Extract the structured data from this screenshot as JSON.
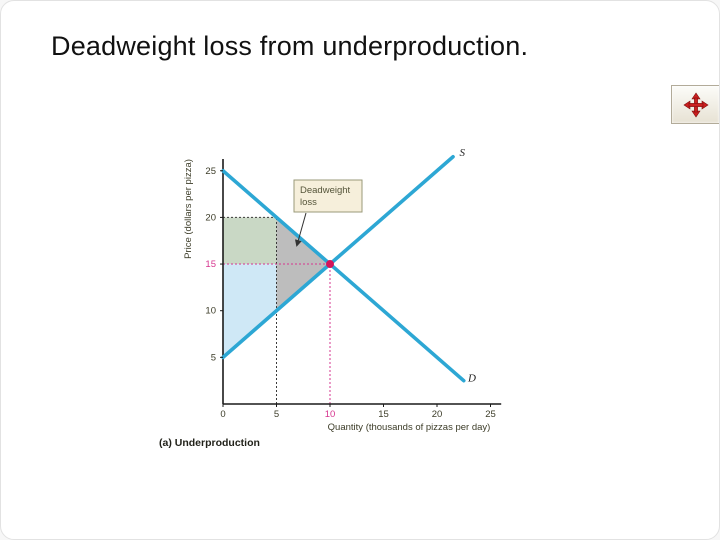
{
  "slide": {
    "title": "Deadweight loss from underproduction.",
    "caption": "(a) Underproduction"
  },
  "icons": {
    "nav_button": "move-arrows-icon",
    "nav_arrow_color": "#cc1f1f"
  },
  "chart_data": {
    "type": "line",
    "title": "Deadweight loss from underproduction",
    "xlabel": "Quantity (thousands of pizzas per day)",
    "ylabel": "Price (dollars per pizza)",
    "xlim": [
      0,
      26
    ],
    "ylim": [
      0,
      27
    ],
    "x_ticks": [
      0,
      5,
      10,
      15,
      20,
      25
    ],
    "y_ticks": [
      5,
      10,
      15,
      20,
      25
    ],
    "highlight_ticks": {
      "x": 10,
      "y": 15
    },
    "highlight_color": "#d6358f",
    "text_color": "#3c3c28",
    "grid": false,
    "legend": "inline-curve-labels",
    "series": [
      {
        "name": "S",
        "points": [
          [
            0,
            5
          ],
          [
            21.5,
            26.5
          ]
        ],
        "color": "#2da7d4",
        "label_pos": [
          22.1,
          26.6
        ]
      },
      {
        "name": "D",
        "points": [
          [
            0,
            25
          ],
          [
            22.5,
            2.5
          ]
        ],
        "color": "#2da7d4",
        "label_pos": [
          22.9,
          2.4
        ]
      }
    ],
    "equilibrium": {
      "x": 10,
      "y": 15,
      "color": "#d4145a"
    },
    "regions": [
      {
        "name": "consumer-surplus",
        "fill": "#c9d8c5",
        "points": [
          [
            0,
            15
          ],
          [
            0,
            20
          ],
          [
            5,
            20
          ],
          [
            5,
            15
          ]
        ]
      },
      {
        "name": "producer-surplus",
        "fill": "#cfe8f6",
        "points": [
          [
            0,
            15
          ],
          [
            5,
            15
          ],
          [
            5,
            10
          ],
          [
            0,
            5
          ]
        ]
      },
      {
        "name": "deadweight-loss",
        "fill": "#bdbdbd",
        "points": [
          [
            5,
            20
          ],
          [
            10,
            15
          ],
          [
            5,
            10
          ]
        ]
      }
    ],
    "guides": [
      {
        "color": "#3a3a3a",
        "from": [
          0,
          20
        ],
        "to": [
          5,
          20
        ]
      },
      {
        "color": "#3a3a3a",
        "from": [
          5,
          0
        ],
        "to": [
          5,
          20
        ]
      },
      {
        "color": "#d6358f",
        "from": [
          0,
          15
        ],
        "to": [
          10,
          15
        ]
      },
      {
        "color": "#d6358f",
        "from": [
          10,
          0
        ],
        "to": [
          10,
          15
        ]
      }
    ],
    "annotation": {
      "lines": [
        "Deadweight",
        "loss"
      ],
      "box_fill": "#f6efdb",
      "box_border": "#9a9a78",
      "text_color": "#55553a"
    }
  }
}
